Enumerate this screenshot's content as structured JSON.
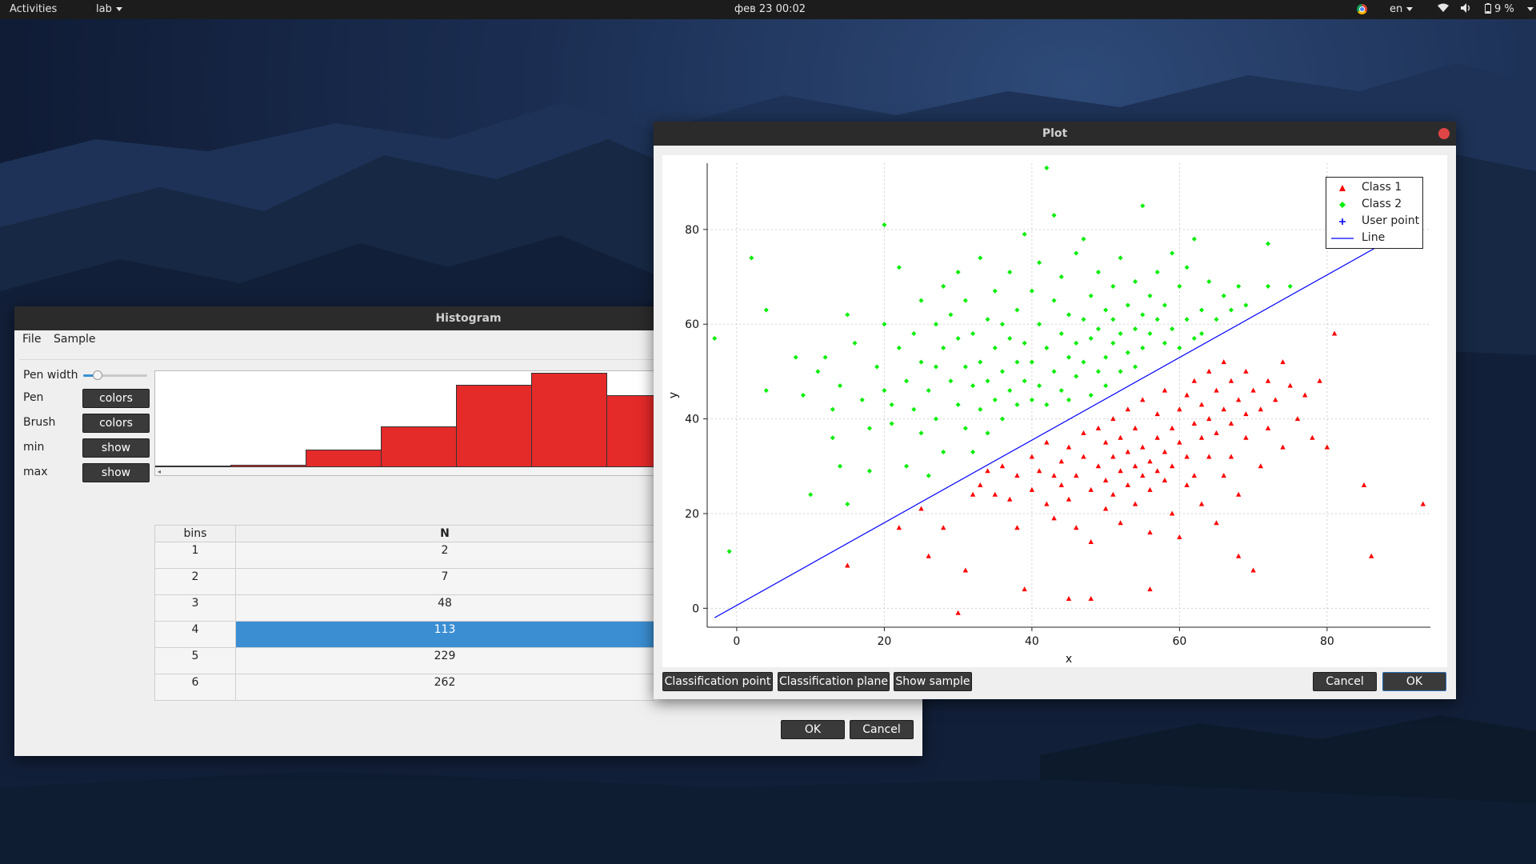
{
  "topbar": {
    "activities": "Activities",
    "app": "lab",
    "datetime": "фев 23  00:02",
    "lang": "en",
    "battery": "9 %"
  },
  "histogram_window": {
    "title": "Histogram",
    "menu": [
      "File",
      "Sample"
    ],
    "controls": {
      "pen_width_label": "Pen width",
      "pen_width_value": 0.15,
      "pen_label": "Pen",
      "pen_button": "colors",
      "brush_label": "Brush",
      "brush_button": "colors",
      "min_label": "min",
      "min_button": "show",
      "max_label": "max",
      "max_button": "show"
    },
    "histogram_bars": [
      2,
      7,
      48,
      113,
      229,
      262,
      200
    ],
    "histogram_max": 262,
    "bar_color": "#e52a2a",
    "table": {
      "headers": [
        "bins",
        "N"
      ],
      "rows": [
        {
          "bin": "1",
          "n": "2"
        },
        {
          "bin": "2",
          "n": "7"
        },
        {
          "bin": "3",
          "n": "48"
        },
        {
          "bin": "4",
          "n": "113"
        },
        {
          "bin": "5",
          "n": "229"
        },
        {
          "bin": "6",
          "n": "262"
        }
      ],
      "selected_row": 3,
      "selection_color": "#3b8ed2"
    },
    "ok": "OK",
    "cancel": "Cancel"
  },
  "plot_window": {
    "title": "Plot",
    "buttons": {
      "classification_point": "Classification point",
      "classification_plane": "Classification plane",
      "show_sample": "Show sample",
      "cancel": "Cancel",
      "ok": "OK"
    }
  },
  "chart_data": {
    "type": "scatter",
    "xlabel": "x",
    "ylabel": "y",
    "xlim": [
      -4,
      94
    ],
    "ylim": [
      -4,
      94
    ],
    "xticks": [
      0,
      20,
      40,
      60,
      80
    ],
    "yticks": [
      0,
      20,
      40,
      60,
      80
    ],
    "grid": true,
    "legend_position": "top-right",
    "series": [
      {
        "name": "Class 1",
        "color": "#ff0000",
        "marker": "triangle",
        "points": [
          [
            22,
            17
          ],
          [
            25,
            21
          ],
          [
            26,
            11
          ],
          [
            28,
            17
          ],
          [
            30,
            -1
          ],
          [
            31,
            8
          ],
          [
            32,
            24
          ],
          [
            33,
            26
          ],
          [
            34,
            29
          ],
          [
            35,
            24
          ],
          [
            36,
            30
          ],
          [
            37,
            23
          ],
          [
            38,
            28
          ],
          [
            38,
            17
          ],
          [
            39,
            4
          ],
          [
            40,
            32
          ],
          [
            40,
            25
          ],
          [
            41,
            29
          ],
          [
            42,
            22
          ],
          [
            42,
            35
          ],
          [
            43,
            28
          ],
          [
            43,
            19
          ],
          [
            44,
            31
          ],
          [
            44,
            26
          ],
          [
            45,
            2
          ],
          [
            45,
            34
          ],
          [
            45,
            23
          ],
          [
            46,
            28
          ],
          [
            46,
            17
          ],
          [
            47,
            32
          ],
          [
            47,
            37
          ],
          [
            48,
            25
          ],
          [
            48,
            14
          ],
          [
            48,
            2
          ],
          [
            49,
            30
          ],
          [
            49,
            38
          ],
          [
            50,
            27
          ],
          [
            50,
            35
          ],
          [
            50,
            21
          ],
          [
            51,
            32
          ],
          [
            51,
            24
          ],
          [
            51,
            40
          ],
          [
            52,
            29
          ],
          [
            52,
            36
          ],
          [
            52,
            18
          ],
          [
            53,
            33
          ],
          [
            53,
            26
          ],
          [
            53,
            42
          ],
          [
            54,
            30
          ],
          [
            54,
            22
          ],
          [
            54,
            38
          ],
          [
            55,
            34
          ],
          [
            55,
            28
          ],
          [
            55,
            44
          ],
          [
            56,
            31
          ],
          [
            56,
            25
          ],
          [
            56,
            16
          ],
          [
            56,
            4
          ],
          [
            57,
            36
          ],
          [
            57,
            29
          ],
          [
            57,
            41
          ],
          [
            58,
            33
          ],
          [
            58,
            27
          ],
          [
            58,
            46
          ],
          [
            59,
            30
          ],
          [
            59,
            38
          ],
          [
            59,
            20
          ],
          [
            60,
            35
          ],
          [
            60,
            42
          ],
          [
            60,
            15
          ],
          [
            61,
            32
          ],
          [
            61,
            45
          ],
          [
            61,
            26
          ],
          [
            62,
            39
          ],
          [
            62,
            48
          ],
          [
            62,
            28
          ],
          [
            63,
            36
          ],
          [
            63,
            43
          ],
          [
            63,
            22
          ],
          [
            64,
            40
          ],
          [
            64,
            50
          ],
          [
            64,
            32
          ],
          [
            65,
            37
          ],
          [
            65,
            46
          ],
          [
            65,
            18
          ],
          [
            66,
            42
          ],
          [
            66,
            52
          ],
          [
            66,
            28
          ],
          [
            67,
            39
          ],
          [
            67,
            48
          ],
          [
            67,
            32
          ],
          [
            68,
            44
          ],
          [
            68,
            24
          ],
          [
            68,
            11
          ],
          [
            69,
            41
          ],
          [
            69,
            50
          ],
          [
            69,
            36
          ],
          [
            70,
            46
          ],
          [
            70,
            8
          ],
          [
            71,
            42
          ],
          [
            71,
            30
          ],
          [
            72,
            48
          ],
          [
            72,
            38
          ],
          [
            73,
            44
          ],
          [
            74,
            52
          ],
          [
            74,
            34
          ],
          [
            75,
            47
          ],
          [
            76,
            40
          ],
          [
            77,
            45
          ],
          [
            78,
            36
          ],
          [
            79,
            48
          ],
          [
            80,
            34
          ],
          [
            81,
            58
          ],
          [
            85,
            26
          ],
          [
            86,
            11
          ],
          [
            93,
            22
          ],
          [
            15,
            9
          ]
        ]
      },
      {
        "name": "Class 2",
        "color": "#00ee00",
        "marker": "diamond",
        "points": [
          [
            -3,
            57
          ],
          [
            -1,
            12
          ],
          [
            2,
            74
          ],
          [
            4,
            63
          ],
          [
            4,
            46
          ],
          [
            8,
            53
          ],
          [
            9,
            45
          ],
          [
            10,
            24
          ],
          [
            11,
            50
          ],
          [
            12,
            53
          ],
          [
            13,
            42
          ],
          [
            13,
            36
          ],
          [
            14,
            30
          ],
          [
            14,
            47
          ],
          [
            15,
            22
          ],
          [
            15,
            62
          ],
          [
            16,
            56
          ],
          [
            17,
            44
          ],
          [
            18,
            38
          ],
          [
            18,
            29
          ],
          [
            19,
            51
          ],
          [
            20,
            81
          ],
          [
            20,
            60
          ],
          [
            20,
            46
          ],
          [
            21,
            43
          ],
          [
            21,
            39
          ],
          [
            22,
            55
          ],
          [
            22,
            72
          ],
          [
            23,
            48
          ],
          [
            23,
            30
          ],
          [
            24,
            58
          ],
          [
            24,
            42
          ],
          [
            25,
            65
          ],
          [
            25,
            52
          ],
          [
            25,
            37
          ],
          [
            26,
            46
          ],
          [
            26,
            28
          ],
          [
            27,
            60
          ],
          [
            27,
            51
          ],
          [
            27,
            40
          ],
          [
            28,
            68
          ],
          [
            28,
            55
          ],
          [
            28,
            33
          ],
          [
            29,
            48
          ],
          [
            29,
            62
          ],
          [
            30,
            43
          ],
          [
            30,
            57
          ],
          [
            30,
            71
          ],
          [
            31,
            51
          ],
          [
            31,
            38
          ],
          [
            31,
            65
          ],
          [
            32,
            47
          ],
          [
            32,
            58
          ],
          [
            32,
            33
          ],
          [
            33,
            74
          ],
          [
            33,
            52
          ],
          [
            33,
            42
          ],
          [
            34,
            61
          ],
          [
            34,
            48
          ],
          [
            34,
            37
          ],
          [
            35,
            67
          ],
          [
            35,
            55
          ],
          [
            35,
            44
          ],
          [
            36,
            50
          ],
          [
            36,
            60
          ],
          [
            36,
            40
          ],
          [
            37,
            71
          ],
          [
            37,
            57
          ],
          [
            37,
            46
          ],
          [
            38,
            52
          ],
          [
            38,
            63
          ],
          [
            38,
            43
          ],
          [
            39,
            79
          ],
          [
            39,
            56
          ],
          [
            39,
            48
          ],
          [
            40,
            67
          ],
          [
            40,
            52
          ],
          [
            40,
            44
          ],
          [
            41,
            60
          ],
          [
            41,
            47
          ],
          [
            41,
            73
          ],
          [
            42,
            93
          ],
          [
            42,
            55
          ],
          [
            42,
            43
          ],
          [
            43,
            65
          ],
          [
            43,
            50
          ],
          [
            43,
            83
          ],
          [
            44,
            58
          ],
          [
            44,
            46
          ],
          [
            44,
            70
          ],
          [
            45,
            53
          ],
          [
            45,
            62
          ],
          [
            45,
            44
          ],
          [
            46,
            75
          ],
          [
            46,
            56
          ],
          [
            46,
            49
          ],
          [
            47,
            61
          ],
          [
            47,
            52
          ],
          [
            47,
            78
          ],
          [
            48,
            57
          ],
          [
            48,
            45
          ],
          [
            48,
            66
          ],
          [
            49,
            59
          ],
          [
            49,
            50
          ],
          [
            49,
            71
          ],
          [
            50,
            63
          ],
          [
            50,
            53
          ],
          [
            50,
            47
          ],
          [
            51,
            68
          ],
          [
            51,
            56
          ],
          [
            51,
            61
          ],
          [
            52,
            58
          ],
          [
            52,
            74
          ],
          [
            52,
            50
          ],
          [
            53,
            64
          ],
          [
            53,
            54
          ],
          [
            54,
            59
          ],
          [
            54,
            69
          ],
          [
            54,
            51
          ],
          [
            55,
            85
          ],
          [
            55,
            62
          ],
          [
            55,
            55
          ],
          [
            56,
            66
          ],
          [
            56,
            58
          ],
          [
            57,
            71
          ],
          [
            57,
            61
          ],
          [
            58,
            56
          ],
          [
            58,
            64
          ],
          [
            59,
            75
          ],
          [
            59,
            59
          ],
          [
            60,
            68
          ],
          [
            60,
            55
          ],
          [
            61,
            61
          ],
          [
            61,
            72
          ],
          [
            62,
            57
          ],
          [
            62,
            78
          ],
          [
            63,
            63
          ],
          [
            63,
            58
          ],
          [
            64,
            69
          ],
          [
            65,
            61
          ],
          [
            66,
            66
          ],
          [
            67,
            63
          ],
          [
            68,
            68
          ],
          [
            69,
            64
          ],
          [
            72,
            77
          ],
          [
            72,
            68
          ],
          [
            75,
            68
          ]
        ]
      },
      {
        "name": "User point",
        "color": "#0000ff",
        "marker": "plus",
        "points": []
      },
      {
        "name": "Line",
        "color": "#0000ff",
        "marker": "line",
        "points": [
          [
            -3,
            -2
          ],
          [
            91,
            80
          ]
        ]
      }
    ]
  }
}
